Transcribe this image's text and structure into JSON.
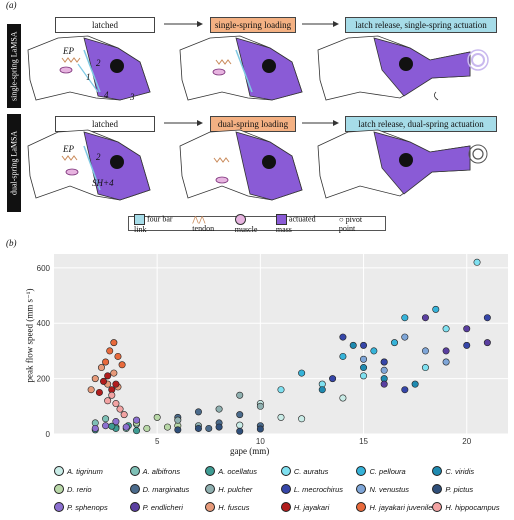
{
  "panel_a": {
    "label": "(a)",
    "row1_side": "single-spring LaMSA",
    "row2_side": "dual-spring LaMSA",
    "row1_stages": [
      "latched",
      "single-spring loading",
      "latch release, single-spring actuation"
    ],
    "row2_stages": [
      "latched",
      "dual-spring loading",
      "latch release, dual-spring actuation"
    ],
    "annotations": {
      "ep": "EP",
      "n1": "1",
      "n2": "2",
      "n3": "3",
      "n4": "4",
      "sh": "SH+4"
    },
    "legend": {
      "four_bar": "four bar link",
      "tendon": "tendon",
      "muscle": "muscle",
      "mass": "actuated mass",
      "pivot": "pivot point"
    },
    "colors": {
      "purple": "#8a5bd6",
      "peach": "#f4b183",
      "cyan": "#a6dce8",
      "link": "#7ec8e3"
    }
  },
  "panel_b": {
    "label": "(b)"
  },
  "chart_data": {
    "type": "scatter",
    "xlabel": "gape (mm)",
    "ylabel": "peak flow speed (mm s⁻¹)",
    "xlim": [
      0,
      22
    ],
    "ylim": [
      0,
      650
    ],
    "xticks": [
      5,
      10,
      15,
      20
    ],
    "yticks": [
      0,
      200,
      400,
      600
    ],
    "xtick_labels": [
      "5",
      "10",
      "15",
      "20"
    ],
    "ytick_labels": [
      "0",
      "200",
      "400",
      "600"
    ],
    "grid": true,
    "series": [
      {
        "name": "A. tigrinum",
        "color": "#c9ece7",
        "points": [
          [
            9,
            32
          ],
          [
            11,
            60
          ],
          [
            12,
            55
          ],
          [
            10,
            110
          ],
          [
            14,
            130
          ]
        ]
      },
      {
        "name": "A. albifrons",
        "color": "#7ec0b6",
        "points": [
          [
            2,
            40
          ],
          [
            3,
            25
          ],
          [
            2.5,
            55
          ],
          [
            4,
            35
          ],
          [
            3.5,
            20
          ]
        ]
      },
      {
        "name": "A. ocellatus",
        "color": "#3e9c93",
        "points": [
          [
            2,
            15
          ],
          [
            3,
            20
          ],
          [
            4,
            12
          ],
          [
            2.8,
            28
          ],
          [
            3.6,
            30
          ]
        ]
      },
      {
        "name": "C. auratus",
        "color": "#7fe0f0",
        "points": [
          [
            11,
            160
          ],
          [
            13,
            180
          ],
          [
            15,
            210
          ],
          [
            16,
            260
          ],
          [
            18,
            240
          ],
          [
            20.5,
            620
          ],
          [
            19,
            380
          ]
        ]
      },
      {
        "name": "C. pelloura",
        "color": "#36b3d9",
        "points": [
          [
            12,
            220
          ],
          [
            14,
            280
          ],
          [
            15.5,
            300
          ],
          [
            17,
            420
          ],
          [
            18.5,
            450
          ],
          [
            16.5,
            330
          ]
        ]
      },
      {
        "name": "C. viridis",
        "color": "#1f8ab0",
        "points": [
          [
            13,
            160
          ],
          [
            15,
            240
          ],
          [
            16,
            200
          ],
          [
            17.5,
            180
          ],
          [
            14.5,
            320
          ]
        ]
      },
      {
        "name": "D. rerio",
        "color": "#b9d8a8",
        "points": [
          [
            4,
            40
          ],
          [
            5,
            60
          ],
          [
            6,
            30
          ],
          [
            4.5,
            20
          ],
          [
            5.5,
            25
          ]
        ]
      },
      {
        "name": "D. marginatus",
        "color": "#4b6b8c",
        "points": [
          [
            6,
            60
          ],
          [
            7,
            80
          ],
          [
            8,
            40
          ],
          [
            9,
            70
          ],
          [
            7.5,
            20
          ],
          [
            10,
            30
          ]
        ]
      },
      {
        "name": "H. pulcher",
        "color": "#8fb0b0",
        "points": [
          [
            6,
            50
          ],
          [
            7,
            30
          ],
          [
            8,
            90
          ],
          [
            9,
            140
          ],
          [
            10,
            100
          ]
        ]
      },
      {
        "name": "L. mecrochirus",
        "color": "#3646a8",
        "points": [
          [
            14,
            350
          ],
          [
            15,
            320
          ],
          [
            16,
            260
          ],
          [
            13.5,
            200
          ],
          [
            17,
            160
          ],
          [
            20,
            320
          ],
          [
            21,
            420
          ]
        ]
      },
      {
        "name": "N. venustus",
        "color": "#7fa6d8",
        "points": [
          [
            15,
            270
          ],
          [
            16,
            230
          ],
          [
            18,
            300
          ],
          [
            19,
            260
          ],
          [
            17,
            350
          ]
        ]
      },
      {
        "name": "P. pictus",
        "color": "#2f4f7a",
        "points": [
          [
            6,
            15
          ],
          [
            7,
            20
          ],
          [
            8,
            25
          ],
          [
            9,
            10
          ],
          [
            10,
            18
          ]
        ]
      },
      {
        "name": "P. sphenops",
        "color": "#8c70d0",
        "points": [
          [
            2.5,
            30
          ],
          [
            3,
            45
          ],
          [
            3.5,
            25
          ],
          [
            2,
            20
          ],
          [
            4,
            50
          ]
        ]
      },
      {
        "name": "P. endlicheri",
        "color": "#5a3fa0",
        "points": [
          [
            18,
            420
          ],
          [
            19,
            300
          ],
          [
            20,
            380
          ],
          [
            21,
            330
          ],
          [
            16,
            180
          ]
        ]
      },
      {
        "name": "H. fuscus",
        "color": "#e69a7a",
        "points": [
          [
            1.8,
            160
          ],
          [
            2,
            200
          ],
          [
            2.3,
            240
          ],
          [
            2.6,
            180
          ],
          [
            2.9,
            220
          ],
          [
            3.1,
            170
          ]
        ]
      },
      {
        "name": "H. jayakari",
        "color": "#b01d1d",
        "points": [
          [
            2.2,
            150
          ],
          [
            2.4,
            190
          ],
          [
            2.6,
            210
          ],
          [
            2.8,
            160
          ],
          [
            3,
            180
          ]
        ]
      },
      {
        "name": "H. jayakari juvenile",
        "color": "#e86a3c",
        "points": [
          [
            2.5,
            260
          ],
          [
            2.7,
            300
          ],
          [
            2.9,
            330
          ],
          [
            3.1,
            280
          ],
          [
            3.3,
            250
          ]
        ]
      },
      {
        "name": "H. hippocampus",
        "color": "#f2a3a3",
        "points": [
          [
            2.6,
            120
          ],
          [
            2.8,
            140
          ],
          [
            3.0,
            110
          ],
          [
            3.2,
            90
          ],
          [
            3.4,
            70
          ]
        ]
      }
    ]
  }
}
